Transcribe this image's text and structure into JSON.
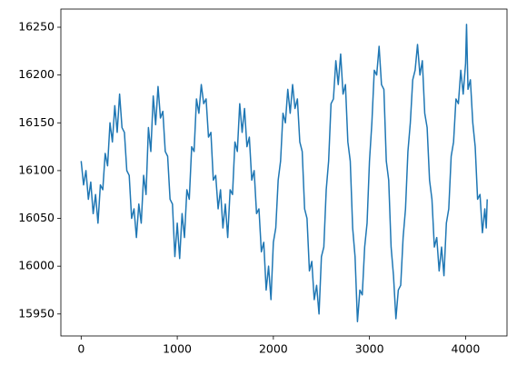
{
  "chart_data": {
    "type": "line",
    "color": "#1f77b4",
    "x": [
      0,
      25,
      50,
      75,
      100,
      125,
      150,
      175,
      200,
      225,
      250,
      275,
      300,
      325,
      350,
      375,
      400,
      425,
      450,
      475,
      500,
      525,
      550,
      575,
      600,
      625,
      650,
      675,
      700,
      725,
      750,
      775,
      800,
      825,
      850,
      875,
      900,
      925,
      950,
      975,
      1000,
      1025,
      1050,
      1075,
      1100,
      1125,
      1150,
      1175,
      1200,
      1225,
      1250,
      1275,
      1300,
      1325,
      1350,
      1375,
      1400,
      1425,
      1450,
      1475,
      1500,
      1525,
      1550,
      1575,
      1600,
      1625,
      1650,
      1675,
      1700,
      1725,
      1750,
      1775,
      1800,
      1825,
      1850,
      1875,
      1900,
      1925,
      1950,
      1975,
      2000,
      2025,
      2050,
      2075,
      2100,
      2125,
      2150,
      2175,
      2200,
      2225,
      2250,
      2275,
      2300,
      2325,
      2350,
      2375,
      2400,
      2425,
      2450,
      2475,
      2500,
      2525,
      2550,
      2575,
      2600,
      2625,
      2650,
      2675,
      2700,
      2725,
      2750,
      2775,
      2800,
      2825,
      2850,
      2875,
      2900,
      2925,
      2950,
      2975,
      3000,
      3025,
      3050,
      3075,
      3100,
      3125,
      3150,
      3175,
      3200,
      3225,
      3250,
      3275,
      3300,
      3325,
      3350,
      3375,
      3400,
      3425,
      3450,
      3475,
      3500,
      3525,
      3550,
      3575,
      3600,
      3625,
      3650,
      3675,
      3700,
      3725,
      3750,
      3775,
      3800,
      3825,
      3850,
      3875,
      3900,
      3925,
      3950,
      3975,
      4000,
      4010,
      4025,
      4050,
      4075,
      4100,
      4125,
      4150,
      4175,
      4200,
      4215,
      4225
    ],
    "values": [
      16110,
      16085,
      16100,
      16070,
      16088,
      16055,
      16075,
      16045,
      16085,
      16080,
      16118,
      16105,
      16150,
      16130,
      16168,
      16140,
      16180,
      16145,
      16140,
      16100,
      16095,
      16050,
      16060,
      16030,
      16065,
      16045,
      16095,
      16075,
      16145,
      16120,
      16178,
      16148,
      16188,
      16155,
      16162,
      16120,
      16115,
      16070,
      16065,
      16010,
      16045,
      16008,
      16055,
      16030,
      16080,
      16070,
      16125,
      16120,
      16175,
      16160,
      16190,
      16170,
      16175,
      16135,
      16140,
      16090,
      16095,
      16060,
      16080,
      16040,
      16065,
      16030,
      16080,
      16075,
      16130,
      16120,
      16170,
      16140,
      16165,
      16125,
      16135,
      16090,
      16100,
      16055,
      16060,
      16015,
      16025,
      15975,
      16000,
      15965,
      16025,
      16040,
      16090,
      16110,
      16160,
      16150,
      16185,
      16160,
      16190,
      16165,
      16175,
      16130,
      16120,
      16060,
      16050,
      15995,
      16005,
      15965,
      15980,
      15950,
      16010,
      16020,
      16080,
      16110,
      16170,
      16175,
      16215,
      16190,
      16222,
      16180,
      16190,
      16130,
      16110,
      16040,
      16010,
      15942,
      15975,
      15970,
      16020,
      16045,
      16110,
      16150,
      16205,
      16200,
      16230,
      16190,
      16185,
      16110,
      16090,
      16020,
      15990,
      15945,
      15975,
      15980,
      16030,
      16060,
      16120,
      16150,
      16195,
      16205,
      16232,
      16200,
      16215,
      16160,
      16145,
      16090,
      16070,
      16020,
      16030,
      15995,
      16020,
      15990,
      16045,
      16060,
      16115,
      16130,
      16175,
      16170,
      16205,
      16180,
      16212,
      16253,
      16185,
      16195,
      16150,
      16125,
      16070,
      16075,
      16035,
      16060,
      16040,
      16070
    ],
    "xlim": [
      -211,
      4431
    ],
    "xticks": [
      0,
      1000,
      2000,
      3000,
      4000
    ],
    "ylim": [
      15927,
      16269
    ],
    "yticks": [
      15950,
      16000,
      16050,
      16100,
      16150,
      16200,
      16250
    ]
  }
}
